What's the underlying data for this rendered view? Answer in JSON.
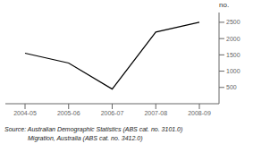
{
  "chart_data": {
    "type": "line",
    "categories": [
      "2004-05",
      "2005-06",
      "2006-07",
      "2007-08",
      "2008-09"
    ],
    "values": [
      1550,
      1250,
      450,
      2200,
      2500
    ],
    "color": "#000000",
    "ylabel": "no.",
    "ylim": [
      0,
      2800
    ],
    "yticks": [
      500,
      1000,
      1500,
      2000,
      2500
    ],
    "grid": false,
    "annotations": [
      "Source: Australian Demographic Statistics (ABS cat. no. 3101.0)",
      "Migration, Australia (ABS cat. no. 3412.0)"
    ]
  }
}
